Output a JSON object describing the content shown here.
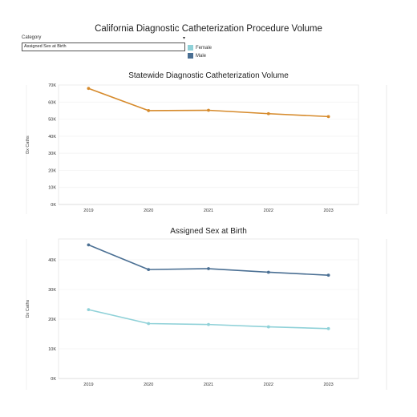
{
  "page_title": "California Diagnostic Catheterization Procedure Volume",
  "filter": {
    "label": "Category",
    "value": "Assigned Sex at Birth",
    "caret": "▾"
  },
  "legend": [
    {
      "label": "Female",
      "color": "#8fd1d8"
    },
    {
      "label": "Male",
      "color": "#4a6f93"
    }
  ],
  "chart_data": [
    {
      "type": "line",
      "title": "Statewide Diagnostic Catheterization Volume",
      "ylabel": "Dx Caths",
      "xlabel": "",
      "x": [
        "2019",
        "2020",
        "2021",
        "2022",
        "2023"
      ],
      "ylim": [
        0,
        70000
      ],
      "yticks": [
        0,
        10000,
        20000,
        30000,
        40000,
        50000,
        60000,
        70000
      ],
      "ytick_labels": [
        "0K",
        "10K",
        "20K",
        "30K",
        "40K",
        "50K",
        "60K",
        "70K"
      ],
      "grid": true,
      "series": [
        {
          "values": [
            68000,
            55000,
            55200,
            53200,
            51500
          ],
          "color": "#d68a2b"
        }
      ]
    },
    {
      "type": "line",
      "title": "Assigned Sex at Birth",
      "ylabel": "Dx Caths",
      "xlabel": "",
      "x": [
        "2019",
        "2020",
        "2021",
        "2022",
        "2023"
      ],
      "ylim": [
        0,
        47000
      ],
      "yticks": [
        0,
        10000,
        20000,
        30000,
        40000
      ],
      "ytick_labels": [
        "0K",
        "10K",
        "20K",
        "30K",
        "40K"
      ],
      "grid": true,
      "legend_position": "top",
      "series": [
        {
          "name": "Male",
          "values": [
            45000,
            36700,
            37000,
            35800,
            34800
          ],
          "color": "#4a6f93"
        },
        {
          "name": "Female",
          "values": [
            23200,
            18500,
            18200,
            17400,
            16800
          ],
          "color": "#8fd1d8"
        }
      ]
    }
  ]
}
